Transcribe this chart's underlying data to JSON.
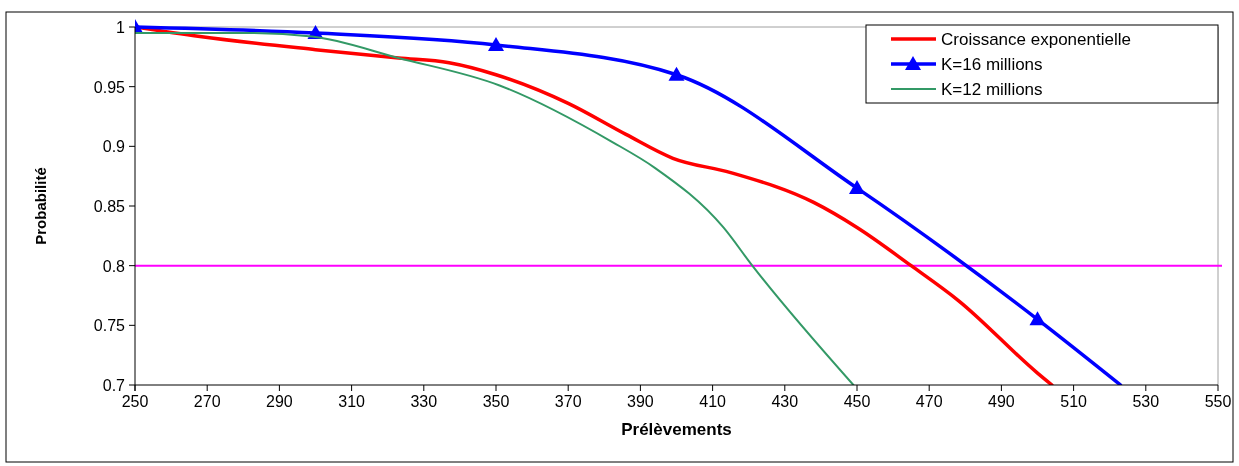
{
  "chart_data": {
    "type": "line",
    "xlabel": "Prélèvements",
    "ylabel": "Probabilité",
    "xlim": [
      250,
      550
    ],
    "xticks": [
      250,
      270,
      290,
      310,
      330,
      350,
      370,
      390,
      410,
      430,
      450,
      470,
      490,
      510,
      530,
      550
    ],
    "ylim": [
      0.7,
      1
    ],
    "yticks": [
      0.7,
      0.75,
      0.8,
      0.85,
      0.9,
      0.95,
      1
    ],
    "legend": "top right",
    "ref_lines": [
      {
        "axis": "y",
        "value": 0.8,
        "color": "#ff00ff"
      }
    ],
    "series": [
      {
        "name": "Croissance exponentielle",
        "color": "#ff0000",
        "marker": "none",
        "x": [
          250,
          268,
          300,
          323,
          337,
          350,
          370,
          386,
          399,
          415,
          438,
          450,
          465,
          478,
          500,
          504
        ],
        "values": [
          1,
          0.992,
          0.981,
          0.974,
          0.97,
          0.96,
          0.936,
          0.91,
          0.89,
          0.878,
          0.853,
          0.832,
          0.8,
          0.771,
          0.71,
          0.7
        ]
      },
      {
        "name": "K=16 millions",
        "color": "#0000ff",
        "marker": "triangle",
        "x": [
          250,
          300,
          350,
          400,
          450,
          500,
          523
        ],
        "values": [
          1,
          0.995,
          0.985,
          0.96,
          0.865,
          0.755,
          0.7
        ]
      },
      {
        "name": "K=12 millions",
        "color": "#339966",
        "marker": "none",
        "x": [
          250,
          280,
          299,
          323,
          351,
          382,
          394,
          413,
          421,
          449
        ],
        "values": [
          0.995,
          0.995,
          0.992,
          0.974,
          0.951,
          0.904,
          0.882,
          0.832,
          0.8,
          0.7
        ]
      }
    ]
  }
}
